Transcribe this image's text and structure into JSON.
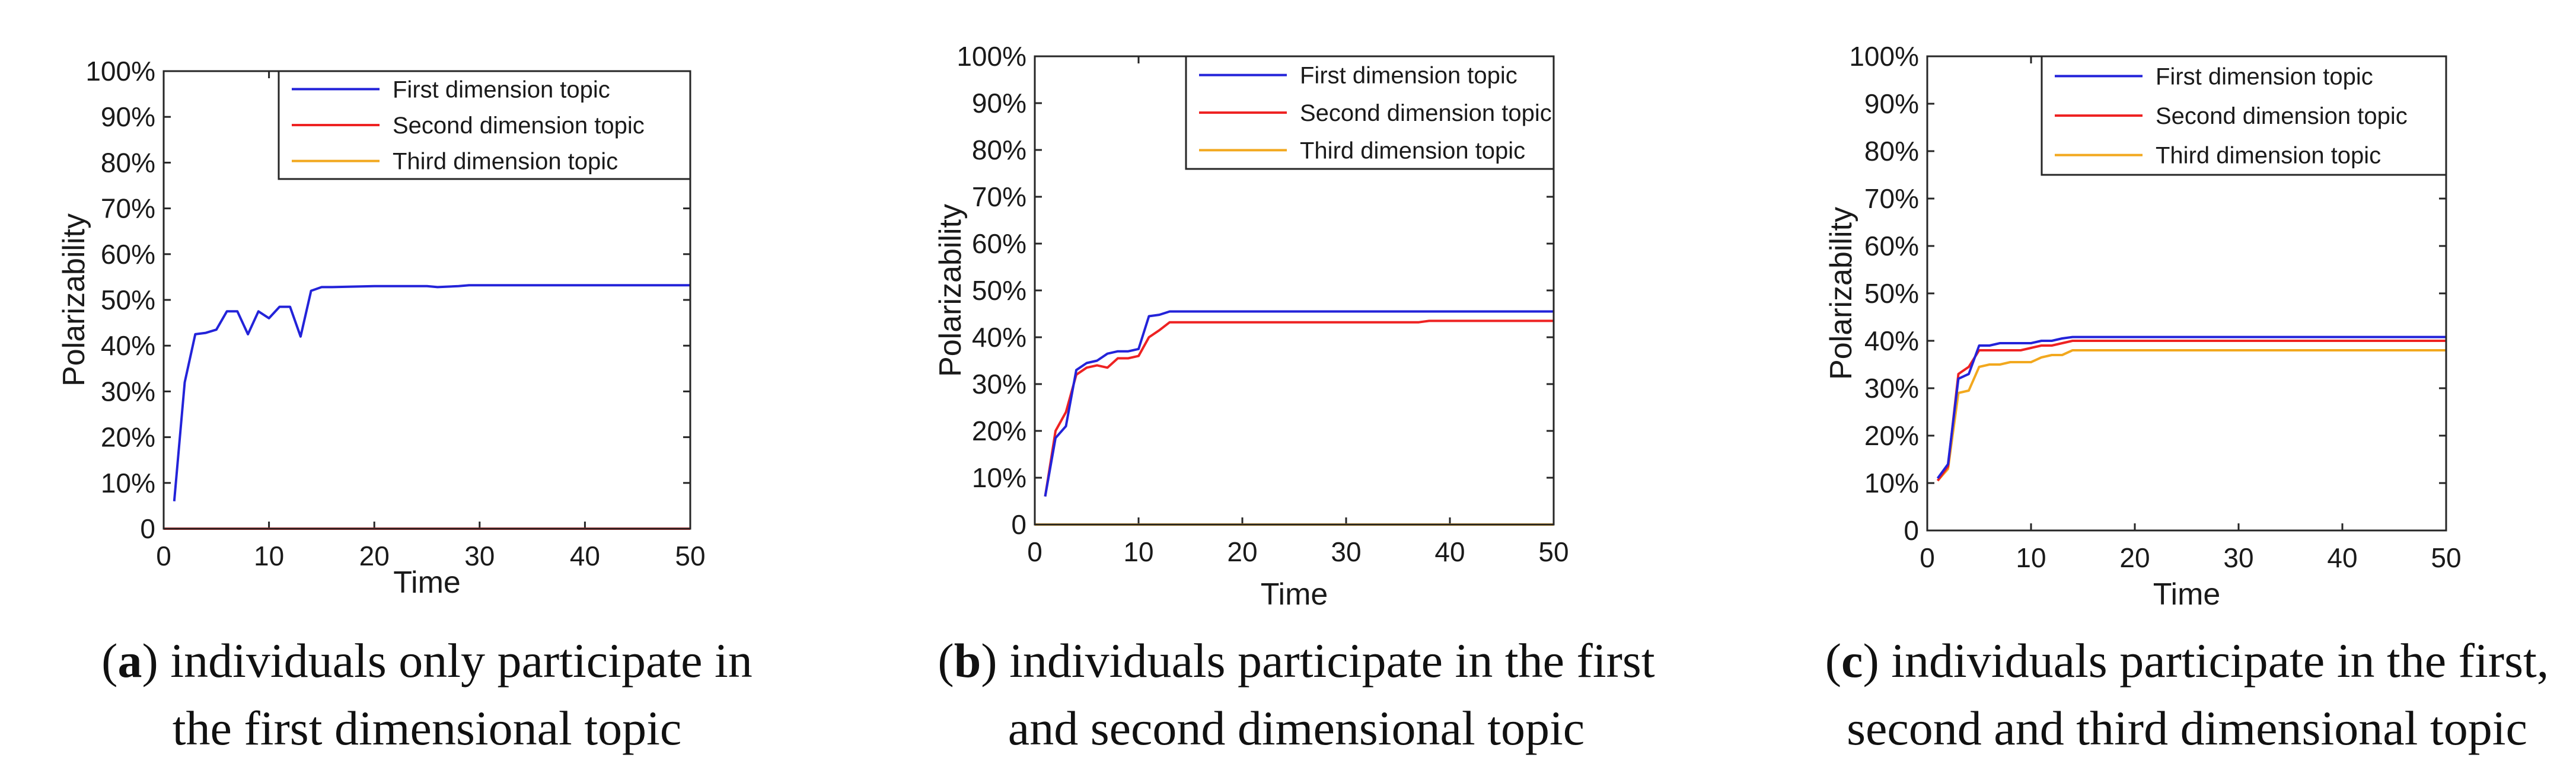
{
  "chart_data": [
    {
      "type": "line",
      "panel_letter": "a",
      "caption_lines": [
        ") individuals only participate in",
        "the first dimensional topic"
      ],
      "xlabel": "Time",
      "ylabel": "Polarizability",
      "xlim": [
        0,
        50
      ],
      "ylim": [
        0,
        100
      ],
      "xticks": [
        "0",
        "10",
        "20",
        "30",
        "40",
        "50"
      ],
      "yticks": [
        "0",
        "10%",
        "20%",
        "30%",
        "40%",
        "50%",
        "60%",
        "70%",
        "80%",
        "90%",
        "100%"
      ],
      "legend_position": "top-right",
      "series": [
        {
          "name": "First dimension topic",
          "color": "#2323d9",
          "x": [
            1,
            2,
            3,
            4,
            5,
            6,
            7,
            8,
            9,
            10,
            11,
            12,
            13,
            14,
            15,
            16,
            20,
            25,
            26,
            28,
            29,
            30,
            50
          ],
          "y": [
            6,
            32,
            42.5,
            42.8,
            43.5,
            47.5,
            47.5,
            42.5,
            47.5,
            46,
            48.5,
            48.5,
            42,
            52,
            52.8,
            52.8,
            53,
            53,
            52.8,
            53,
            53.2,
            53.2,
            53.2
          ]
        },
        {
          "name": "Second dimension topic",
          "color": "#ee2222",
          "x": [
            0,
            50
          ],
          "y": [
            0,
            0
          ]
        },
        {
          "name": "Third dimension topic",
          "color": "#f2a81e",
          "x": [
            0,
            50
          ],
          "y": [
            0,
            0
          ]
        }
      ]
    },
    {
      "type": "line",
      "panel_letter": "b",
      "caption_lines": [
        ") individuals participate in the first",
        "and second dimensional topic"
      ],
      "xlabel": "Time",
      "ylabel": "Polarizability",
      "xlim": [
        0,
        50
      ],
      "ylim": [
        0,
        100
      ],
      "xticks": [
        "0",
        "10",
        "20",
        "30",
        "40",
        "50"
      ],
      "yticks": [
        "0",
        "10%",
        "20%",
        "30%",
        "40%",
        "50%",
        "60%",
        "70%",
        "80%",
        "90%",
        "100%"
      ],
      "legend_position": "top-right",
      "series": [
        {
          "name": "First dimension topic",
          "color": "#2323d9",
          "x": [
            1,
            2,
            3,
            4,
            5,
            6,
            7,
            8,
            9,
            10,
            11,
            12,
            13,
            20,
            50
          ],
          "y": [
            6,
            18.5,
            21,
            33,
            34.5,
            35,
            36.5,
            37,
            37,
            37.5,
            44.5,
            44.8,
            45.5,
            45.5,
            45.5
          ]
        },
        {
          "name": "Second dimension topic",
          "color": "#ee2222",
          "x": [
            1,
            2,
            3,
            4,
            5,
            6,
            7,
            8,
            9,
            10,
            11,
            12,
            13,
            37,
            38,
            50
          ],
          "y": [
            6,
            20,
            24,
            32,
            33.5,
            34,
            33.5,
            35.5,
            35.5,
            36,
            40,
            41.5,
            43.2,
            43.2,
            43.5,
            43.5
          ]
        },
        {
          "name": "Third dimension topic",
          "color": "#f2a81e",
          "x": [
            0,
            50
          ],
          "y": [
            0,
            0
          ]
        }
      ]
    },
    {
      "type": "line",
      "panel_letter": "c",
      "caption_lines": [
        ") individuals participate in the first,",
        "second and third dimensional topic"
      ],
      "xlabel": "Time",
      "ylabel": "Polarizability",
      "xlim": [
        0,
        50
      ],
      "ylim": [
        0,
        100
      ],
      "xticks": [
        "0",
        "10",
        "20",
        "30",
        "40",
        "50"
      ],
      "yticks": [
        "0",
        "10%",
        "20%",
        "30%",
        "40%",
        "50%",
        "60%",
        "70%",
        "80%",
        "90%",
        "100%"
      ],
      "legend_position": "top-right",
      "series": [
        {
          "name": "First dimension topic",
          "color": "#2323d9",
          "x": [
            1,
            2,
            3,
            4,
            5,
            6,
            7,
            8,
            9,
            10,
            11,
            12,
            13,
            14,
            50
          ],
          "y": [
            11,
            14,
            32,
            33,
            39,
            39,
            39.5,
            39.5,
            39.5,
            39.5,
            40,
            40,
            40.5,
            40.8,
            40.8
          ]
        },
        {
          "name": "Second dimension topic",
          "color": "#ee2222",
          "x": [
            1,
            2,
            3,
            4,
            5,
            6,
            7,
            8,
            9,
            10,
            11,
            12,
            13,
            14,
            50
          ],
          "y": [
            10.5,
            13.5,
            33,
            34.5,
            38,
            38,
            38,
            38,
            38,
            38.5,
            39,
            39,
            39.5,
            40,
            40
          ]
        },
        {
          "name": "Third dimension topic",
          "color": "#f2a81e",
          "x": [
            1,
            2,
            3,
            4,
            5,
            6,
            7,
            8,
            9,
            10,
            11,
            12,
            13,
            14,
            50
          ],
          "y": [
            10.5,
            13,
            29,
            29.5,
            34.5,
            35,
            35,
            35.5,
            35.5,
            35.5,
            36.5,
            37,
            37,
            38,
            38
          ]
        }
      ]
    }
  ]
}
